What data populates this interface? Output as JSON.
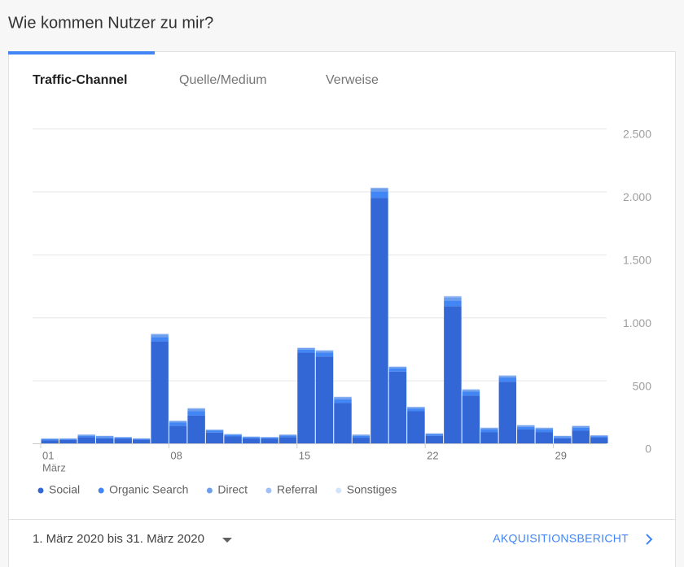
{
  "header": {
    "title": "Wie kommen Nutzer zu mir?"
  },
  "tabs": [
    "Traffic-Channel",
    "Quelle/Medium",
    "Verweise"
  ],
  "chart_data": {
    "type": "stacked_bar",
    "categories": [
      "01",
      null,
      null,
      null,
      null,
      null,
      null,
      "08",
      null,
      null,
      null,
      null,
      null,
      null,
      "15",
      null,
      null,
      null,
      null,
      null,
      null,
      "22",
      null,
      null,
      null,
      null,
      null,
      null,
      "29",
      null,
      null
    ],
    "x_sublabel": "März",
    "series": [
      {
        "name": "Social",
        "color": "#3367d6",
        "values": [
          25,
          28,
          50,
          40,
          38,
          30,
          810,
          140,
          220,
          85,
          55,
          40,
          38,
          50,
          720,
          690,
          320,
          45,
          1950,
          570,
          255,
          60,
          1090,
          380,
          90,
          490,
          110,
          90,
          40,
          100,
          45
        ]
      },
      {
        "name": "Organic Search",
        "color": "#4285f4",
        "values": [
          8,
          6,
          10,
          10,
          7,
          5,
          35,
          25,
          35,
          15,
          12,
          8,
          7,
          12,
          25,
          30,
          30,
          15,
          50,
          25,
          20,
          12,
          45,
          30,
          20,
          30,
          20,
          20,
          10,
          25,
          12
        ]
      },
      {
        "name": "Direct",
        "color": "#6d9eeb",
        "values": [
          5,
          5,
          8,
          8,
          4,
          4,
          20,
          12,
          20,
          8,
          6,
          5,
          4,
          6,
          12,
          15,
          15,
          8,
          25,
          12,
          12,
          6,
          25,
          15,
          12,
          15,
          12,
          12,
          8,
          12,
          6
        ]
      },
      {
        "name": "Referral",
        "color": "#a0c0f7",
        "values": [
          2,
          1,
          2,
          2,
          1,
          1,
          5,
          3,
          5,
          2,
          2,
          2,
          1,
          2,
          3,
          5,
          5,
          2,
          5,
          3,
          3,
          2,
          10,
          5,
          3,
          5,
          3,
          3,
          2,
          3,
          2
        ]
      },
      {
        "name": "Sonstiges",
        "color": "#d2e3fc",
        "values": [
          0,
          0,
          0,
          0,
          0,
          0,
          0,
          0,
          0,
          0,
          0,
          0,
          0,
          0,
          0,
          0,
          0,
          0,
          0,
          0,
          0,
          0,
          0,
          0,
          0,
          0,
          0,
          0,
          0,
          0,
          0
        ]
      }
    ],
    "ylim": [
      0,
      2500
    ],
    "yticks": [
      0,
      500,
      {
        "value": 1000,
        "label": "1.000"
      },
      {
        "value": 1500,
        "label": "1.500"
      },
      {
        "value": 2000,
        "label": "2.000"
      },
      {
        "value": 2500,
        "label": "2.500"
      }
    ],
    "grid": true
  },
  "footer": {
    "date_range": "1. März 2020 bis 31. März 2020",
    "link": "AKQUISITIONSBERICHT"
  }
}
